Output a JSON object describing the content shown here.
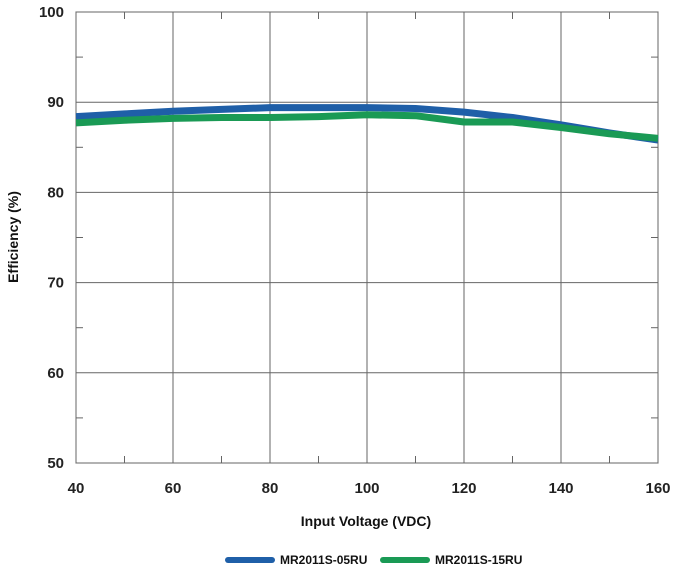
{
  "chart_data": {
    "type": "line",
    "xlabel": "Input Voltage (VDC)",
    "ylabel": "Efficiency (%)",
    "xlim": [
      40,
      160
    ],
    "ylim": [
      50,
      100
    ],
    "xticks": [
      40,
      60,
      80,
      100,
      120,
      140,
      160
    ],
    "yticks": [
      50,
      60,
      70,
      80,
      90,
      100
    ],
    "grid": true,
    "legend_position": "bottom",
    "series": [
      {
        "name": "MR2011S-05RU",
        "color": "#1f5fa8",
        "x": [
          40,
          50,
          60,
          70,
          80,
          90,
          100,
          110,
          120,
          130,
          140,
          150,
          160
        ],
        "y": [
          88.4,
          88.7,
          89.0,
          89.2,
          89.4,
          89.4,
          89.4,
          89.3,
          88.9,
          88.3,
          87.5,
          86.6,
          85.8
        ]
      },
      {
        "name": "MR2011S-15RU",
        "color": "#1a9a55",
        "x": [
          40,
          50,
          60,
          70,
          80,
          90,
          100,
          110,
          120,
          130,
          140,
          150,
          160
        ],
        "y": [
          87.7,
          88.0,
          88.2,
          88.3,
          88.3,
          88.4,
          88.6,
          88.5,
          87.8,
          87.8,
          87.2,
          86.5,
          86.0
        ]
      }
    ]
  }
}
